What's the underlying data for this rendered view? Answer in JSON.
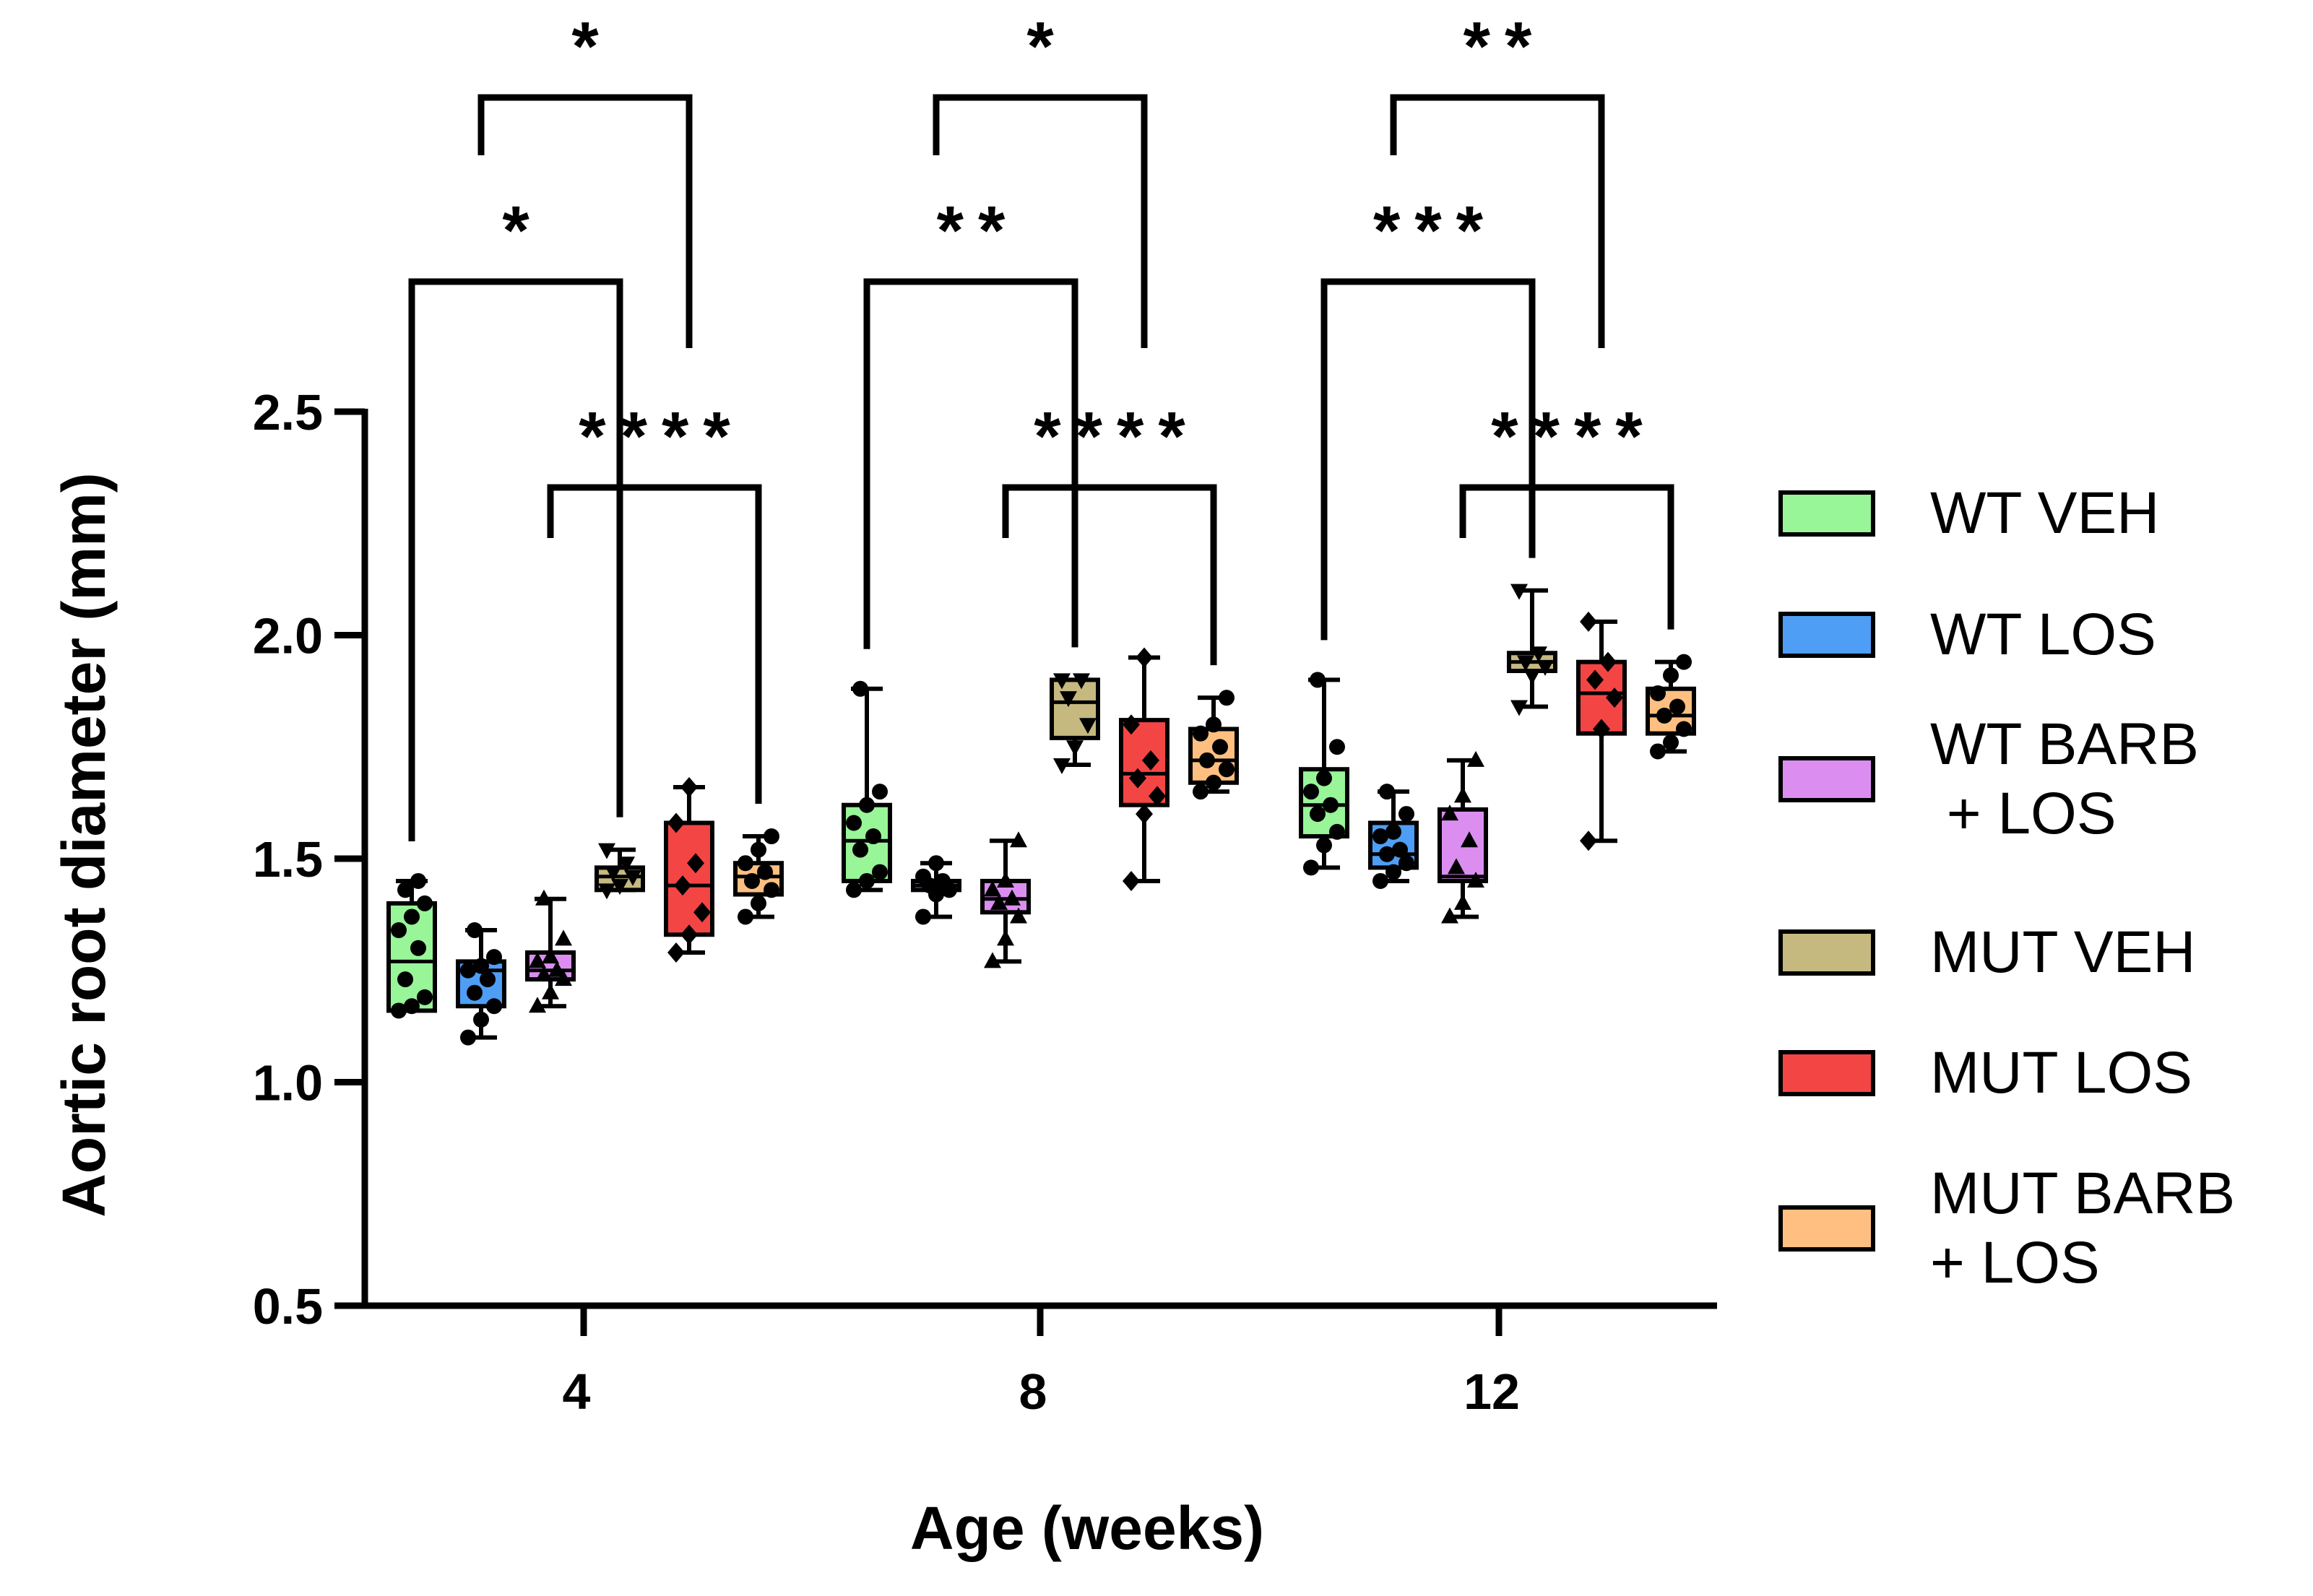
{
  "chart_data": {
    "type": "box",
    "xlabel": "Age (weeks)",
    "ylabel": "Aortic root diameter (mm)",
    "ylim": [
      0.5,
      2.5
    ],
    "yticks": [
      "0.5",
      "1.0",
      "1.5",
      "2.0",
      "2.5"
    ],
    "categories": [
      "4",
      "8",
      "12"
    ],
    "legend_position": "right",
    "series": [
      {
        "name": "WT VEH",
        "color": "#98f598",
        "marker": "circle",
        "boxes": [
          {
            "min": 1.16,
            "q1": 1.16,
            "median": 1.27,
            "q3": 1.4,
            "max": 1.45,
            "points": [
              1.16,
              1.17,
              1.19,
              1.23,
              1.3,
              1.34,
              1.37,
              1.4,
              1.43,
              1.45
            ]
          },
          {
            "min": 1.43,
            "q1": 1.45,
            "median": 1.54,
            "q3": 1.62,
            "max": 1.88,
            "points": [
              1.43,
              1.45,
              1.47,
              1.52,
              1.55,
              1.58,
              1.62,
              1.65,
              1.88
            ]
          },
          {
            "min": 1.48,
            "q1": 1.55,
            "median": 1.62,
            "q3": 1.7,
            "max": 1.9,
            "points": [
              1.48,
              1.53,
              1.56,
              1.6,
              1.62,
              1.65,
              1.68,
              1.75,
              1.9
            ]
          }
        ]
      },
      {
        "name": "WT LOS",
        "color": "#4f9ef5",
        "marker": "circle",
        "boxes": [
          {
            "min": 1.1,
            "q1": 1.17,
            "median": 1.25,
            "q3": 1.27,
            "max": 1.34,
            "points": [
              1.1,
              1.14,
              1.17,
              1.2,
              1.23,
              1.25,
              1.26,
              1.28,
              1.34
            ]
          },
          {
            "min": 1.37,
            "q1": 1.43,
            "median": 1.44,
            "q3": 1.45,
            "max": 1.49,
            "points": [
              1.37,
              1.42,
              1.43,
              1.44,
              1.45,
              1.46,
              1.49
            ]
          },
          {
            "min": 1.45,
            "q1": 1.48,
            "median": 1.51,
            "q3": 1.58,
            "max": 1.65,
            "points": [
              1.45,
              1.47,
              1.49,
              1.51,
              1.52,
              1.55,
              1.56,
              1.6,
              1.65
            ]
          }
        ]
      },
      {
        "name": "WT BARB + LOS",
        "color": "#dc8ef0",
        "marker": "triangle-up",
        "boxes": [
          {
            "min": 1.17,
            "q1": 1.23,
            "median": 1.25,
            "q3": 1.29,
            "max": 1.41,
            "points": [
              1.17,
              1.2,
              1.23,
              1.24,
              1.25,
              1.27,
              1.28,
              1.32,
              1.41
            ]
          },
          {
            "min": 1.27,
            "q1": 1.38,
            "median": 1.41,
            "q3": 1.45,
            "max": 1.54,
            "points": [
              1.27,
              1.32,
              1.37,
              1.4,
              1.41,
              1.43,
              1.45,
              1.54
            ]
          },
          {
            "min": 1.37,
            "q1": 1.45,
            "median": 1.46,
            "q3": 1.61,
            "max": 1.72,
            "points": [
              1.37,
              1.4,
              1.45,
              1.48,
              1.54,
              1.6,
              1.64,
              1.72
            ]
          }
        ]
      },
      {
        "name": "MUT VEH",
        "color": "#c5b980",
        "marker": "triangle-down",
        "boxes": [
          {
            "min": 1.43,
            "q1": 1.43,
            "median": 1.46,
            "q3": 1.48,
            "max": 1.52,
            "points": [
              1.43,
              1.44,
              1.46,
              1.47,
              1.49,
              1.52
            ]
          },
          {
            "min": 1.71,
            "q1": 1.77,
            "median": 1.85,
            "q3": 1.9,
            "max": 1.9,
            "points": [
              1.71,
              1.75,
              1.8,
              1.86,
              1.9,
              1.9
            ]
          },
          {
            "min": 1.84,
            "q1": 1.92,
            "median": 1.94,
            "q3": 1.96,
            "max": 2.1,
            "points": [
              1.84,
              1.91,
              1.93,
              1.94,
              1.96,
              2.1
            ]
          }
        ]
      },
      {
        "name": "MUT LOS",
        "color": "#f44545",
        "marker": "diamond",
        "boxes": [
          {
            "min": 1.29,
            "q1": 1.33,
            "median": 1.44,
            "q3": 1.58,
            "max": 1.66,
            "points": [
              1.29,
              1.33,
              1.38,
              1.44,
              1.49,
              1.58,
              1.66
            ]
          },
          {
            "min": 1.45,
            "q1": 1.62,
            "median": 1.69,
            "q3": 1.81,
            "max": 1.95,
            "points": [
              1.45,
              1.6,
              1.64,
              1.68,
              1.72,
              1.8,
              1.95
            ]
          },
          {
            "min": 1.54,
            "q1": 1.78,
            "median": 1.87,
            "q3": 1.94,
            "max": 2.03,
            "points": [
              1.54,
              1.79,
              1.86,
              1.9,
              1.94,
              2.03
            ]
          }
        ]
      },
      {
        "name": "MUT BARB + LOS",
        "color": "#ffbf80",
        "marker": "circle",
        "boxes": [
          {
            "min": 1.37,
            "q1": 1.42,
            "median": 1.46,
            "q3": 1.49,
            "max": 1.55,
            "points": [
              1.37,
              1.4,
              1.43,
              1.45,
              1.47,
              1.49,
              1.52,
              1.55
            ]
          },
          {
            "min": 1.65,
            "q1": 1.67,
            "median": 1.72,
            "q3": 1.79,
            "max": 1.86,
            "points": [
              1.65,
              1.67,
              1.7,
              1.72,
              1.75,
              1.78,
              1.8,
              1.86
            ]
          },
          {
            "min": 1.74,
            "q1": 1.78,
            "median": 1.82,
            "q3": 1.88,
            "max": 1.94,
            "points": [
              1.74,
              1.76,
              1.79,
              1.82,
              1.84,
              1.87,
              1.91,
              1.94
            ]
          }
        ]
      }
    ],
    "significance": [
      {
        "week": "4",
        "from": "WT VEH",
        "to": "MUT VEH",
        "label": "*"
      },
      {
        "week": "4",
        "from": "WT LOS",
        "to": "MUT LOS",
        "label": "*"
      },
      {
        "week": "4",
        "from": "WT BARB + LOS",
        "to": "MUT BARB + LOS",
        "label": "****"
      },
      {
        "week": "8",
        "from": "WT VEH",
        "to": "MUT VEH",
        "label": "**"
      },
      {
        "week": "8",
        "from": "WT LOS",
        "to": "MUT LOS",
        "label": "*"
      },
      {
        "week": "8",
        "from": "WT BARB + LOS",
        "to": "MUT BARB + LOS",
        "label": "****"
      },
      {
        "week": "12",
        "from": "WT VEH",
        "to": "MUT VEH",
        "label": "***"
      },
      {
        "week": "12",
        "from": "WT LOS",
        "to": "MUT LOS",
        "label": "**"
      },
      {
        "week": "12",
        "from": "WT BARB + LOS",
        "to": "MUT BARB + LOS",
        "label": "****"
      }
    ]
  },
  "legend": {
    "entries": [
      {
        "lines": [
          "WT VEH"
        ],
        "color": "#98f598"
      },
      {
        "lines": [
          "WT LOS"
        ],
        "color": "#4f9ef5"
      },
      {
        "lines": [
          "WT BARB",
          " + LOS"
        ],
        "color": "#dc8ef0"
      },
      {
        "lines": [
          "MUT VEH"
        ],
        "color": "#c5b980"
      },
      {
        "lines": [
          "MUT LOS"
        ],
        "color": "#f44545"
      },
      {
        "lines": [
          "MUT BARB",
          "+ LOS"
        ],
        "color": "#ffbf80"
      }
    ]
  }
}
